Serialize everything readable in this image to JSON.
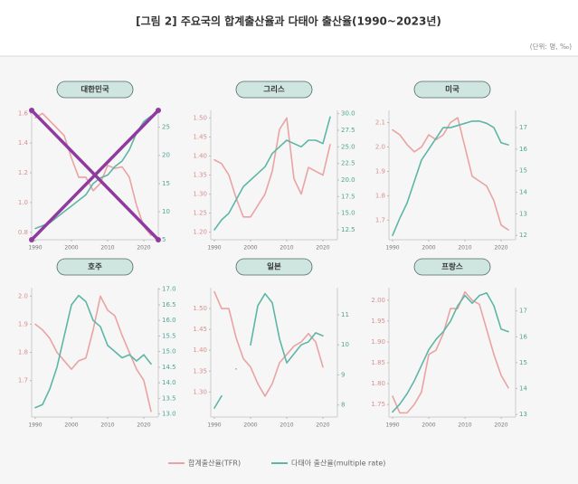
{
  "title": "[그림 2] 주요국의 합계출산율과 다태아 출산율(1990~2023년)",
  "unit": "(단위: 명, ‰)",
  "chart_data": [
    {
      "type": "line",
      "title": "대한민국",
      "x": [
        1990,
        1992,
        1994,
        1996,
        1998,
        2000,
        2002,
        2004,
        2006,
        2008,
        2010,
        2012,
        2014,
        2016,
        2018,
        2020,
        2022
      ],
      "xlim": [
        1989,
        2024
      ],
      "xticks": [
        1990,
        2000,
        2010,
        2020
      ],
      "ylim": [
        0.75,
        1.62
      ],
      "yticks": [
        {
          "value": 0.8,
          "label": "0.8"
        },
        {
          "value": 1,
          "label": "1.0"
        },
        1.2,
        1.4,
        1.6
      ],
      "y2lim": [
        5,
        28
      ],
      "y2ticks": [
        5,
        10,
        15,
        20,
        25
      ],
      "series": [
        {
          "name": "합계출산율(TFR)",
          "color": "#e9a3a3",
          "values": [
            1.57,
            1.6,
            1.55,
            1.5,
            1.45,
            1.3,
            1.17,
            1.17,
            1.08,
            1.13,
            1.25,
            1.23,
            1.24,
            1.17,
            0.98,
            0.84,
            0.78
          ]
        },
        {
          "name": "다태아 출산율(multiple rate)",
          "color": "#5db6a6",
          "axis": "y2",
          "values": [
            7,
            7.5,
            8,
            9,
            10,
            11,
            12,
            13,
            15,
            16,
            16.5,
            18,
            19,
            21,
            24,
            26,
            27
          ]
        }
      ]
    },
    {
      "type": "line",
      "title": "그리스",
      "x": [
        1990,
        1992,
        1994,
        1996,
        1998,
        2000,
        2002,
        2004,
        2006,
        2008,
        2010,
        2012,
        2014,
        2016,
        2018,
        2020,
        2022
      ],
      "xlim": [
        1989,
        2024
      ],
      "xticks": [
        1990,
        2000,
        2010,
        2020
      ],
      "ylim": [
        1.18,
        1.52
      ],
      "yticks": [
        {
          "value": 1.2,
          "label": "1.20"
        },
        1.25,
        {
          "value": 1.3,
          "label": "1.30"
        },
        1.35,
        {
          "value": 1.4,
          "label": "1.40"
        },
        1.45,
        {
          "value": 1.5,
          "label": "1.50"
        }
      ],
      "y2lim": [
        11,
        30.5
      ],
      "y2ticks": [
        12.5,
        {
          "value": 15,
          "label": "15.0"
        },
        17.5,
        {
          "value": 20,
          "label": "20.0"
        },
        22.5,
        {
          "value": 25,
          "label": "25.0"
        },
        27.5,
        {
          "value": 30,
          "label": "30.0"
        }
      ],
      "series": [
        {
          "name": "합계출산율(TFR)",
          "color": "#e9a3a3",
          "values": [
            1.39,
            1.38,
            1.35,
            1.29,
            1.24,
            1.24,
            1.27,
            1.3,
            1.36,
            1.47,
            1.5,
            1.34,
            1.3,
            1.37,
            1.36,
            1.35,
            1.43
          ]
        },
        {
          "name": "다태아 출산율(multiple rate)",
          "color": "#5db6a6",
          "axis": "y2",
          "values": [
            12.5,
            14,
            15,
            17,
            19,
            20,
            21,
            22,
            24,
            25,
            26,
            25.5,
            25,
            26,
            26,
            25.5,
            29.5
          ]
        }
      ]
    },
    {
      "type": "line",
      "title": "미국",
      "x": [
        1990,
        1992,
        1994,
        1996,
        1998,
        2000,
        2002,
        2004,
        2006,
        2008,
        2010,
        2012,
        2014,
        2016,
        2018,
        2020,
        2022
      ],
      "xlim": [
        1989,
        2024
      ],
      "xticks": [
        1990,
        2000,
        2010,
        2020
      ],
      "ylim": [
        1.62,
        2.15
      ],
      "yticks": [
        1.7,
        1.8,
        1.9,
        {
          "value": 2,
          "label": "2.0"
        },
        2.1
      ],
      "y2lim": [
        11.8,
        17.8
      ],
      "y2ticks": [
        12,
        13,
        14,
        15,
        16,
        17
      ],
      "series": [
        {
          "name": "합계출산율(TFR)",
          "color": "#e9a3a3",
          "values": [
            2.07,
            2.05,
            2.01,
            1.98,
            2.0,
            2.05,
            2.03,
            2.05,
            2.1,
            2.12,
            2.0,
            1.88,
            1.86,
            1.84,
            1.78,
            1.68,
            1.66
          ]
        },
        {
          "name": "다태아 출산율(multiple rate)",
          "color": "#5db6a6",
          "axis": "y2",
          "values": [
            12,
            12.8,
            13.5,
            14.5,
            15.5,
            16,
            16.5,
            17,
            17,
            17.1,
            17.2,
            17.3,
            17.3,
            17.2,
            17,
            16.3,
            16.2
          ]
        }
      ]
    },
    {
      "type": "line",
      "title": "호주",
      "x": [
        1990,
        1992,
        1994,
        1996,
        1998,
        2000,
        2002,
        2004,
        2006,
        2008,
        2010,
        2012,
        2014,
        2016,
        2018,
        2020,
        2022
      ],
      "xlim": [
        1989,
        2024
      ],
      "xticks": [
        1990,
        2000,
        2010,
        2020
      ],
      "ylim": [
        1.57,
        2.03
      ],
      "yticks": [
        1.7,
        1.8,
        1.9,
        {
          "value": 2,
          "label": "2.0"
        }
      ],
      "y2lim": [
        12.9,
        17.05
      ],
      "y2ticks": [
        {
          "value": 13,
          "label": "13.0"
        },
        13.5,
        {
          "value": 14,
          "label": "14.0"
        },
        14.5,
        {
          "value": 15,
          "label": "15.0"
        },
        15.5,
        {
          "value": 16,
          "label": "16.0"
        },
        16.5,
        {
          "value": 17,
          "label": "17.0"
        }
      ],
      "series": [
        {
          "name": "합계출산율(TFR)",
          "color": "#e9a3a3",
          "values": [
            1.9,
            1.88,
            1.85,
            1.8,
            1.77,
            1.74,
            1.77,
            1.78,
            1.88,
            2.0,
            1.95,
            1.93,
            1.86,
            1.8,
            1.74,
            1.7,
            1.59
          ]
        },
        {
          "name": "다태아 출산율(multiple rate)",
          "color": "#5db6a6",
          "axis": "y2",
          "values": [
            13.2,
            13.3,
            13.8,
            14.5,
            15.5,
            16.5,
            16.8,
            16.6,
            16,
            15.8,
            15.2,
            15,
            14.8,
            14.9,
            14.7,
            14.9,
            14.6
          ]
        }
      ]
    },
    {
      "type": "line",
      "title": "일본",
      "x": [
        1990,
        1992,
        1994,
        1996,
        1998,
        2000,
        2002,
        2004,
        2006,
        2008,
        2010,
        2012,
        2014,
        2016,
        2018,
        2020,
        2022
      ],
      "xlim": [
        1989,
        2024
      ],
      "xticks": [
        1990,
        2000,
        2010,
        2020
      ],
      "ylim": [
        1.24,
        1.55
      ],
      "yticks": [
        {
          "value": 1.3,
          "label": "1.30"
        },
        1.35,
        {
          "value": 1.4,
          "label": "1.40"
        },
        1.45,
        {
          "value": 1.5,
          "label": "1.50"
        }
      ],
      "y2lim": [
        7.6,
        11.9
      ],
      "y2ticks": [
        8,
        9,
        10,
        11
      ],
      "series": [
        {
          "name": "합계출산율(TFR)",
          "color": "#e9a3a3",
          "values": [
            1.54,
            1.5,
            1.5,
            1.43,
            1.38,
            1.36,
            1.32,
            1.29,
            1.32,
            1.37,
            1.39,
            1.41,
            1.42,
            1.44,
            1.42,
            1.36,
            null
          ]
        },
        {
          "name": "다태아 출산율(multiple rate)",
          "color": "#5db6a6",
          "axis": "y2",
          "values": [
            7.9,
            8.3,
            null,
            9.2,
            null,
            10,
            11.3,
            11.7,
            11.4,
            10.2,
            9.4,
            9.7,
            10,
            10.1,
            10.4,
            10.3,
            null
          ]
        }
      ]
    },
    {
      "type": "line",
      "title": "프랑스",
      "x": [
        1990,
        1992,
        1994,
        1996,
        1998,
        2000,
        2002,
        2004,
        2006,
        2008,
        2010,
        2012,
        2014,
        2016,
        2018,
        2020,
        2022
      ],
      "xlim": [
        1989,
        2024
      ],
      "xticks": [
        1990,
        2000,
        2010,
        2020
      ],
      "ylim": [
        1.72,
        2.03
      ],
      "yticks": [
        1.75,
        {
          "value": 1.8,
          "label": "1.80"
        },
        1.85,
        {
          "value": 1.9,
          "label": "1.90"
        },
        1.95,
        {
          "value": 2,
          "label": "2.00"
        }
      ],
      "y2lim": [
        12.9,
        17.9
      ],
      "y2ticks": [
        13,
        14,
        15,
        16,
        17
      ],
      "series": [
        {
          "name": "합계출산율(TFR)",
          "color": "#e9a3a3",
          "values": [
            1.77,
            1.73,
            1.73,
            1.75,
            1.78,
            1.87,
            1.88,
            1.92,
            1.98,
            1.98,
            2.02,
            2.0,
            1.99,
            1.93,
            1.87,
            1.82,
            1.79
          ]
        },
        {
          "name": "다태아 출산율(multiple rate)",
          "color": "#5db6a6",
          "axis": "y2",
          "values": [
            13.1,
            13.4,
            13.8,
            14.3,
            14.9,
            15.5,
            15.9,
            16.2,
            16.6,
            17.2,
            17.6,
            17.3,
            17.6,
            17.7,
            17.2,
            16.3,
            16.2
          ]
        }
      ]
    }
  ]
}
